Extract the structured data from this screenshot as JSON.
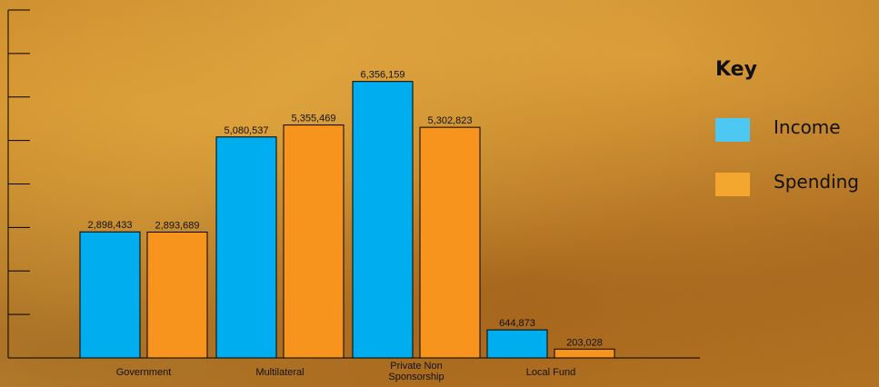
{
  "chart_data": {
    "type": "bar",
    "categories": [
      "Government",
      "Multilateral",
      "Private Non Sponsorship",
      "Local Fund"
    ],
    "series": [
      {
        "name": "Income",
        "color": "#00aeef",
        "values": [
          2898433,
          5080537,
          6356159,
          644873
        ]
      },
      {
        "name": "Spending",
        "color": "#f7941d",
        "values": [
          2893689,
          5355469,
          5302823,
          203028
        ]
      }
    ],
    "value_labels": {
      "Income": [
        "2,898,433",
        "5,080,537",
        "6,356,159",
        "644,873"
      ],
      "Spending": [
        "2,893,689",
        "5,355,469",
        "5,302,823",
        "203,028"
      ]
    },
    "ylim": [
      0,
      8000000
    ],
    "y_tick_count": 9,
    "y_tick_labels_shown": false,
    "grid": false,
    "legend": {
      "title": "Key",
      "placement": "right",
      "items": [
        {
          "label": "Income",
          "color": "#4dc8f2"
        },
        {
          "label": "Spending",
          "color": "#f3a72e"
        }
      ]
    },
    "title": "",
    "xlabel": "",
    "ylabel": ""
  }
}
